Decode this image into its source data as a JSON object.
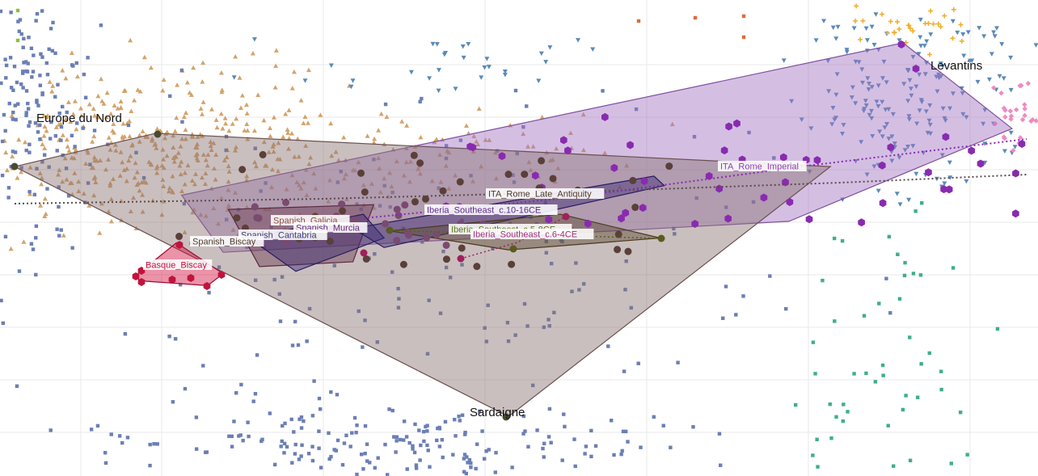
{
  "chart_data": {
    "type": "scatter",
    "grid": true,
    "region_labels": [
      "Europe du Nord",
      "Levantins",
      "Sardaigne"
    ],
    "population_labels": [
      {
        "text": "ITA_Rome_Imperial",
        "color": "#8e3fae"
      },
      {
        "text": "ITA_Rome_Late_Antiquity",
        "color": "#4d3a29"
      },
      {
        "text": "Iberia_Southeast_c.10-16CE",
        "color": "#5a2a8e"
      },
      {
        "text": "Iberia_Southeast_c.5-8CE",
        "color": "#5c7a1e"
      },
      {
        "text": "Iberia_Southeast_c.6-4CE",
        "color": "#a0307a"
      },
      {
        "text": "Spanish_Galicia",
        "color": "#8a4a3c"
      },
      {
        "text": "Spanish_Murcia",
        "color": "#6a2a7e"
      },
      {
        "text": "Spanish_Cantabria",
        "color": "#3a3a7e"
      },
      {
        "text": "Spanish_Biscay",
        "color": "#4d3a29"
      },
      {
        "text": "Basque_Biscay",
        "color": "#c0143c"
      }
    ],
    "background_groups": [
      {
        "marker": "square",
        "color": "#6b7fb5"
      },
      {
        "marker": "triangle-up",
        "color": "#d4a36a"
      },
      {
        "marker": "triangle-down",
        "color": "#5a8ab8"
      },
      {
        "marker": "square",
        "color": "#3fae8a"
      },
      {
        "marker": "cross",
        "color": "#f0b030"
      },
      {
        "marker": "diamond",
        "color": "#f08ac0"
      },
      {
        "marker": "square",
        "color": "#e06a3a"
      },
      {
        "marker": "square",
        "color": "#8ac040"
      }
    ],
    "hulls": [
      {
        "name": "Levantins",
        "fill": "#a070c0",
        "stroke": "#8050a0",
        "points": [
          [
            0.175,
            0.41
          ],
          [
            0.87,
            0.09
          ],
          [
            0.975,
            0.27
          ],
          [
            0.76,
            0.465
          ],
          [
            0.215,
            0.53
          ]
        ]
      },
      {
        "name": "Europe du Nord",
        "fill": "#8a7070",
        "stroke": "#6a5050",
        "points": [
          [
            0.014,
            0.35
          ],
          [
            0.15,
            0.28
          ],
          [
            0.8,
            0.35
          ],
          [
            0.49,
            0.875
          ]
        ]
      },
      {
        "name": "Spanish_Galicia",
        "fill": "#6a3a50",
        "stroke": "#5a2a40",
        "points": [
          [
            0.22,
            0.44
          ],
          [
            0.36,
            0.43
          ],
          [
            0.34,
            0.55
          ],
          [
            0.25,
            0.56
          ]
        ]
      },
      {
        "name": "Spanish_Cantabria",
        "fill": "#3a2a70",
        "stroke": "#2a1a60",
        "points": [
          [
            0.24,
            0.5
          ],
          [
            0.35,
            0.45
          ],
          [
            0.37,
            0.5
          ],
          [
            0.285,
            0.57
          ]
        ]
      },
      {
        "name": "Iberia_Southeast_c.10-16CE",
        "fill": "#3a2a70",
        "stroke": "#2a1a60",
        "points": [
          [
            0.34,
            0.48
          ],
          [
            0.63,
            0.37
          ],
          [
            0.64,
            0.39
          ],
          [
            0.37,
            0.52
          ]
        ]
      },
      {
        "name": "Iberia_Southeast_c.5-8CE",
        "fill": "#5a4a30",
        "stroke": "#4a3a20",
        "points": [
          [
            0.375,
            0.485
          ],
          [
            0.54,
            0.45
          ],
          [
            0.636,
            0.5
          ],
          [
            0.49,
            0.525
          ]
        ]
      },
      {
        "name": "Basque_Biscay",
        "fill": "#d01040",
        "stroke": "#a00a30",
        "points": [
          [
            0.13,
            0.58
          ],
          [
            0.17,
            0.51
          ],
          [
            0.215,
            0.575
          ],
          [
            0.2,
            0.6
          ],
          [
            0.135,
            0.59
          ]
        ]
      }
    ]
  }
}
